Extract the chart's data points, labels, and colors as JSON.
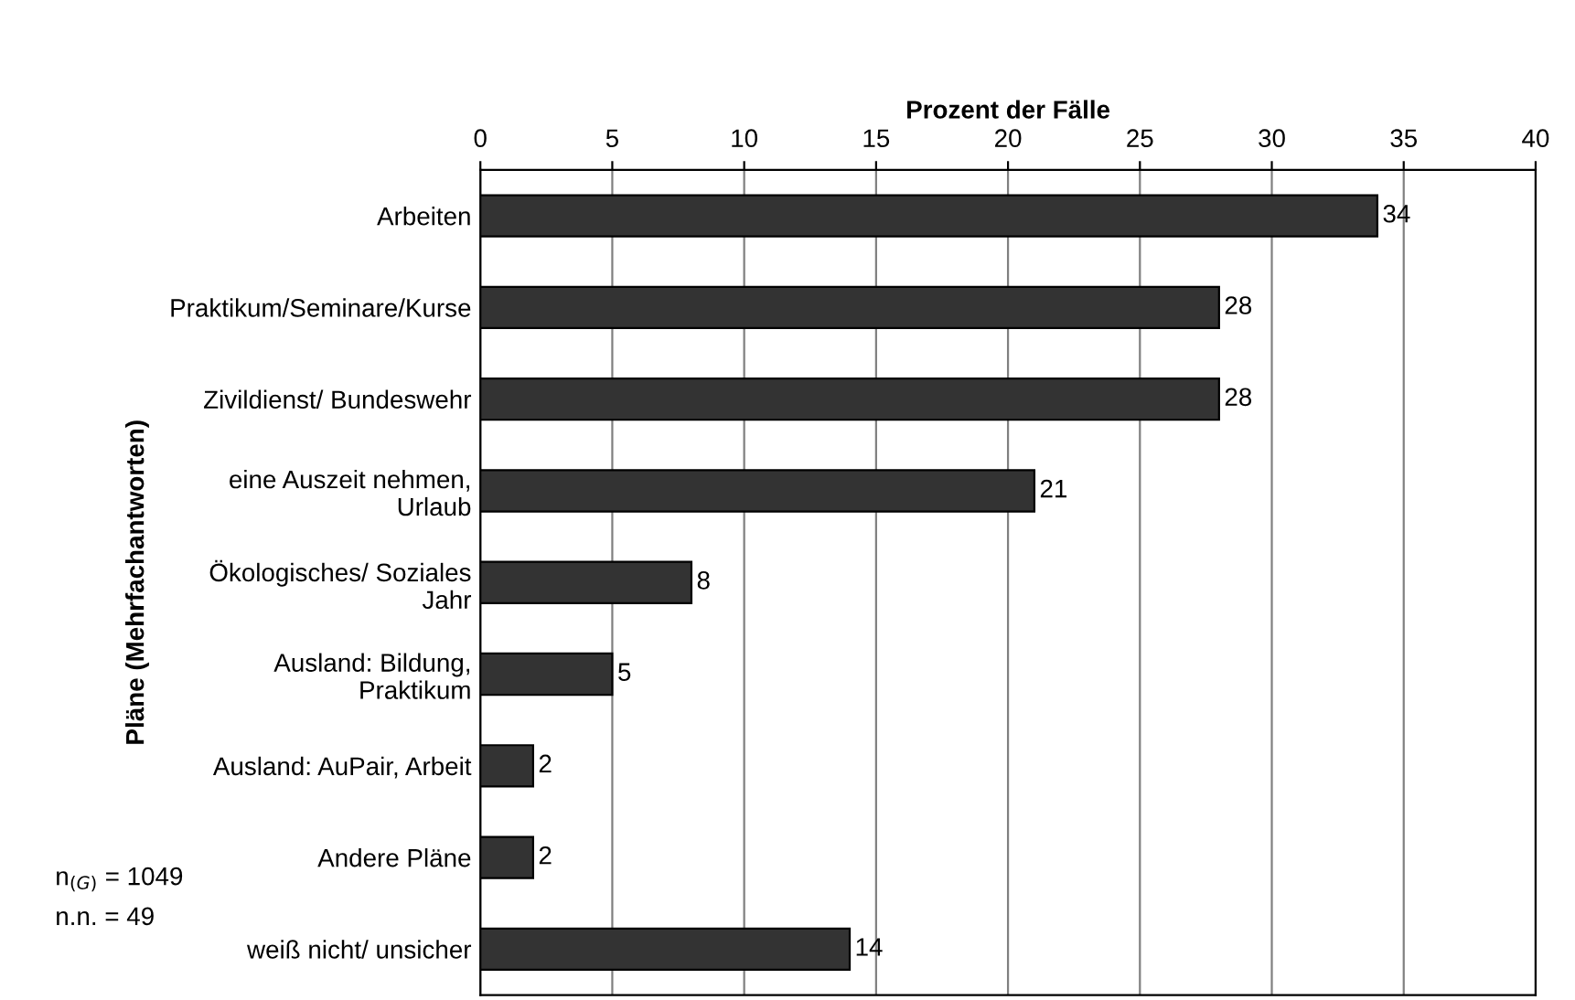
{
  "chart_data": {
    "type": "bar",
    "orientation": "horizontal",
    "xlabel": "Prozent der Fälle",
    "ylabel": "Pläne (Mehrfachantworten)",
    "categories": [
      "Arbeiten",
      "Praktikum/Seminare/Kurse",
      "Zivildienst/ Bundeswehr",
      "eine Auszeit nehmen,\nUrlaub",
      "Ökologisches/ Soziales\nJahr",
      "Ausland: Bildung,\nPraktikum",
      "Ausland: AuPair, Arbeit",
      "Andere Pläne",
      "weiß nicht/ unsicher"
    ],
    "values": [
      34,
      28,
      28,
      21,
      8,
      5,
      2,
      2,
      14
    ],
    "color": "#333333",
    "xlim": [
      0,
      40
    ],
    "xticks": [
      0,
      5,
      10,
      15,
      20,
      25,
      30,
      35,
      40
    ],
    "grid": "x",
    "data_labels": true,
    "annotations": [
      "n$_{(G)}$ = 1049",
      "n.n. = 49"
    ]
  }
}
